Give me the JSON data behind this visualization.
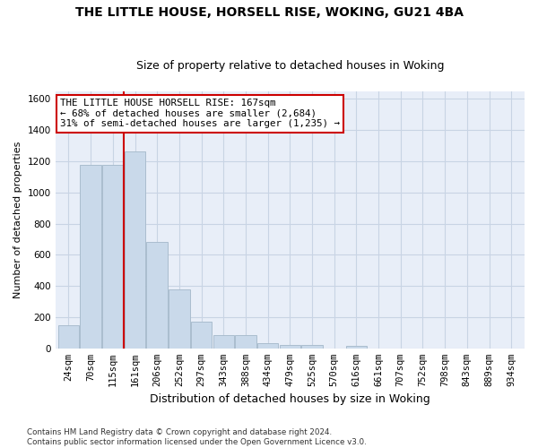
{
  "title": "THE LITTLE HOUSE, HORSELL RISE, WOKING, GU21 4BA",
  "subtitle": "Size of property relative to detached houses in Woking",
  "xlabel": "Distribution of detached houses by size in Woking",
  "ylabel": "Number of detached properties",
  "footer_line1": "Contains HM Land Registry data © Crown copyright and database right 2024.",
  "footer_line2": "Contains public sector information licensed under the Open Government Licence v3.0.",
  "categories": [
    "24sqm",
    "70sqm",
    "115sqm",
    "161sqm",
    "206sqm",
    "252sqm",
    "297sqm",
    "343sqm",
    "388sqm",
    "434sqm",
    "479sqm",
    "525sqm",
    "570sqm",
    "616sqm",
    "661sqm",
    "707sqm",
    "752sqm",
    "798sqm",
    "843sqm",
    "889sqm",
    "934sqm"
  ],
  "values": [
    148,
    1175,
    1175,
    1265,
    680,
    380,
    170,
    83,
    83,
    35,
    22,
    22,
    0,
    15,
    0,
    0,
    0,
    0,
    0,
    0,
    0
  ],
  "bar_color": "#c9d9ea",
  "bar_edgecolor": "#aabdce",
  "annotation_text": "THE LITTLE HOUSE HORSELL RISE: 167sqm\n← 68% of detached houses are smaller (2,684)\n31% of semi-detached houses are larger (1,235) →",
  "vline_color": "#cc0000",
  "vline_x_index": 3,
  "ylim": [
    0,
    1650
  ],
  "yticks": [
    0,
    200,
    400,
    600,
    800,
    1000,
    1200,
    1400,
    1600
  ],
  "grid_color": "#c8d4e4",
  "background_color": "#e8eef8",
  "title_fontsize": 10,
  "subtitle_fontsize": 9,
  "annotation_fontsize": 7.8,
  "annotation_boxcolor": "white",
  "annotation_bordercolor": "#cc0000",
  "ylabel_fontsize": 8,
  "xlabel_fontsize": 9,
  "tick_fontsize": 7.5
}
